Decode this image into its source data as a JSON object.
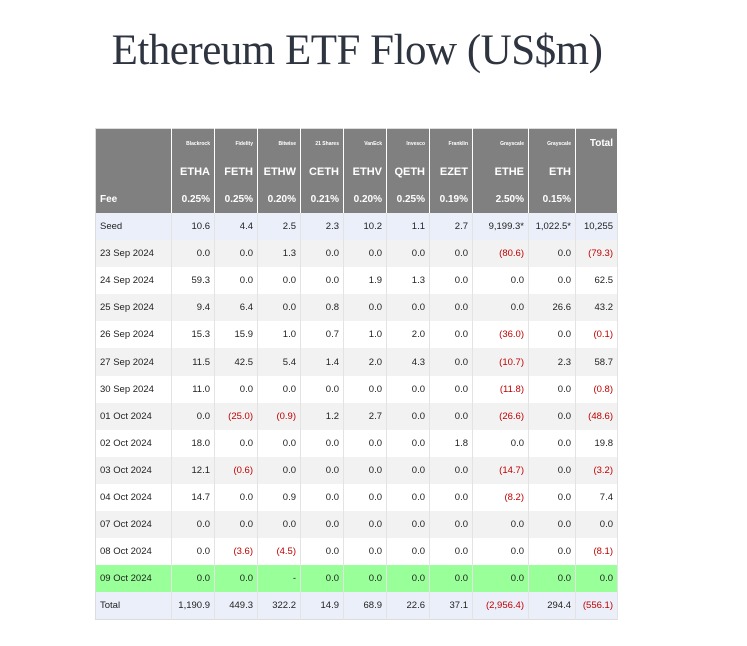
{
  "title": "Ethereum ETF Flow (US$m)",
  "header": {
    "issuers": [
      "Blackrock",
      "Fidelity",
      "Bitwise",
      "21 Shares",
      "VanEck",
      "Invesco",
      "Franklin",
      "Grayscale",
      "Grayscale"
    ],
    "total_label": "Total",
    "tickers": [
      "ETHA",
      "FETH",
      "ETHW",
      "CETH",
      "ETHV",
      "QETH",
      "EZET",
      "ETHE",
      "ETH"
    ],
    "fee_label": "Fee",
    "fees": [
      "0.25%",
      "0.25%",
      "0.20%",
      "0.21%",
      "0.20%",
      "0.25%",
      "0.19%",
      "2.50%",
      "0.15%"
    ]
  },
  "rows": [
    {
      "label": "Seed",
      "style": "seed",
      "values": [
        "10.6",
        "4.4",
        "2.5",
        "2.3",
        "10.2",
        "1.1",
        "2.7",
        "9,199.3*",
        "1,022.5*",
        "10,255"
      ]
    },
    {
      "label": "23 Sep 2024",
      "style": "odd",
      "values": [
        "0.0",
        "0.0",
        "1.3",
        "0.0",
        "0.0",
        "0.0",
        "0.0",
        "(80.6)",
        "0.0",
        "(79.3)"
      ]
    },
    {
      "label": "24 Sep 2024",
      "style": "even",
      "values": [
        "59.3",
        "0.0",
        "0.0",
        "0.0",
        "1.9",
        "1.3",
        "0.0",
        "0.0",
        "0.0",
        "62.5"
      ]
    },
    {
      "label": "25 Sep 2024",
      "style": "odd",
      "values": [
        "9.4",
        "6.4",
        "0.0",
        "0.8",
        "0.0",
        "0.0",
        "0.0",
        "0.0",
        "26.6",
        "43.2"
      ]
    },
    {
      "label": "26 Sep 2024",
      "style": "even",
      "values": [
        "15.3",
        "15.9",
        "1.0",
        "0.7",
        "1.0",
        "2.0",
        "0.0",
        "(36.0)",
        "0.0",
        "(0.1)"
      ]
    },
    {
      "label": "27 Sep 2024",
      "style": "odd",
      "values": [
        "11.5",
        "42.5",
        "5.4",
        "1.4",
        "2.0",
        "4.3",
        "0.0",
        "(10.7)",
        "2.3",
        "58.7"
      ]
    },
    {
      "label": "30 Sep 2024",
      "style": "even",
      "values": [
        "11.0",
        "0.0",
        "0.0",
        "0.0",
        "0.0",
        "0.0",
        "0.0",
        "(11.8)",
        "0.0",
        "(0.8)"
      ]
    },
    {
      "label": "01 Oct 2024",
      "style": "odd",
      "values": [
        "0.0",
        "(25.0)",
        "(0.9)",
        "1.2",
        "2.7",
        "0.0",
        "0.0",
        "(26.6)",
        "0.0",
        "(48.6)"
      ]
    },
    {
      "label": "02 Oct 2024",
      "style": "even",
      "values": [
        "18.0",
        "0.0",
        "0.0",
        "0.0",
        "0.0",
        "0.0",
        "1.8",
        "0.0",
        "0.0",
        "19.8"
      ]
    },
    {
      "label": "03 Oct 2024",
      "style": "odd",
      "values": [
        "12.1",
        "(0.6)",
        "0.0",
        "0.0",
        "0.0",
        "0.0",
        "0.0",
        "(14.7)",
        "0.0",
        "(3.2)"
      ]
    },
    {
      "label": "04 Oct 2024",
      "style": "even",
      "values": [
        "14.7",
        "0.0",
        "0.9",
        "0.0",
        "0.0",
        "0.0",
        "0.0",
        "(8.2)",
        "0.0",
        "7.4"
      ]
    },
    {
      "label": "07 Oct 2024",
      "style": "odd",
      "values": [
        "0.0",
        "0.0",
        "0.0",
        "0.0",
        "0.0",
        "0.0",
        "0.0",
        "0.0",
        "0.0",
        "0.0"
      ]
    },
    {
      "label": "08 Oct 2024",
      "style": "even",
      "values": [
        "0.0",
        "(3.6)",
        "(4.5)",
        "0.0",
        "0.0",
        "0.0",
        "0.0",
        "0.0",
        "0.0",
        "(8.1)"
      ]
    },
    {
      "label": "09 Oct 2024",
      "style": "highlight",
      "values": [
        "0.0",
        "0.0",
        "-",
        "0.0",
        "0.0",
        "0.0",
        "0.0",
        "0.0",
        "0.0",
        "0.0"
      ]
    },
    {
      "label": "Total",
      "style": "total",
      "values": [
        "1,190.9",
        "449.3",
        "322.2",
        "14.9",
        "68.9",
        "22.6",
        "37.1",
        "(2,956.4)",
        "294.4",
        "(556.1)"
      ]
    }
  ],
  "colors": {
    "header_bg": "#808080",
    "negative": "#c00000",
    "highlight_row": "#99ff99",
    "seed_total_row": "#eaeff9",
    "alt_row": "#f2f2f2"
  }
}
